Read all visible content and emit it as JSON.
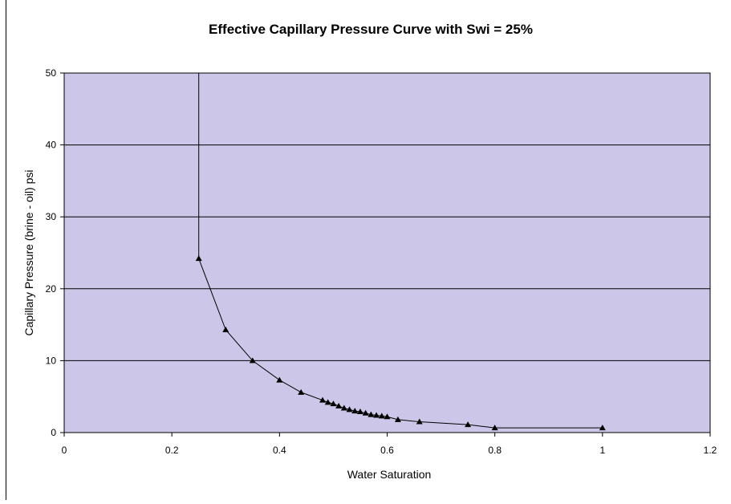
{
  "chart_data": {
    "type": "scatter",
    "title": "Effective Capillary Pressure Curve with Swi = 25%",
    "xlabel": "Water Saturation",
    "ylabel": "Capillary Pressure (brine - oil) psi",
    "xlim": [
      0,
      1.2
    ],
    "ylim": [
      0,
      50
    ],
    "x_ticks": [
      0,
      0.2,
      0.4,
      0.6,
      0.8,
      1,
      1.2
    ],
    "x_tick_labels": [
      "0",
      "0.2",
      "0.4",
      "0.6",
      "0.8",
      "1",
      "1.2"
    ],
    "y_ticks": [
      0,
      10,
      20,
      30,
      40,
      50
    ],
    "y_tick_labels": [
      "0",
      "10",
      "20",
      "30",
      "40",
      "50"
    ],
    "grid": "horizontal",
    "legend": "none",
    "plot_background": "#ccc6e9",
    "line_color": "#000000",
    "marker": "triangle",
    "series": [
      {
        "points": [
          [
            0.25,
            50
          ],
          [
            0.25,
            24.2
          ],
          [
            0.3,
            14.3
          ],
          [
            0.35,
            10.0
          ],
          [
            0.4,
            7.3
          ],
          [
            0.44,
            5.6
          ],
          [
            0.48,
            4.5
          ],
          [
            0.49,
            4.2
          ],
          [
            0.5,
            4.0
          ],
          [
            0.51,
            3.7
          ],
          [
            0.52,
            3.4
          ],
          [
            0.53,
            3.2
          ],
          [
            0.54,
            3.0
          ],
          [
            0.55,
            2.9
          ],
          [
            0.56,
            2.7
          ],
          [
            0.57,
            2.5
          ],
          [
            0.58,
            2.4
          ],
          [
            0.59,
            2.3
          ],
          [
            0.6,
            2.2
          ],
          [
            0.62,
            1.8
          ],
          [
            0.66,
            1.5
          ],
          [
            0.75,
            1.1
          ],
          [
            0.8,
            0.65
          ],
          [
            1.0,
            0.65
          ]
        ],
        "markers_start_index": 1
      }
    ]
  }
}
